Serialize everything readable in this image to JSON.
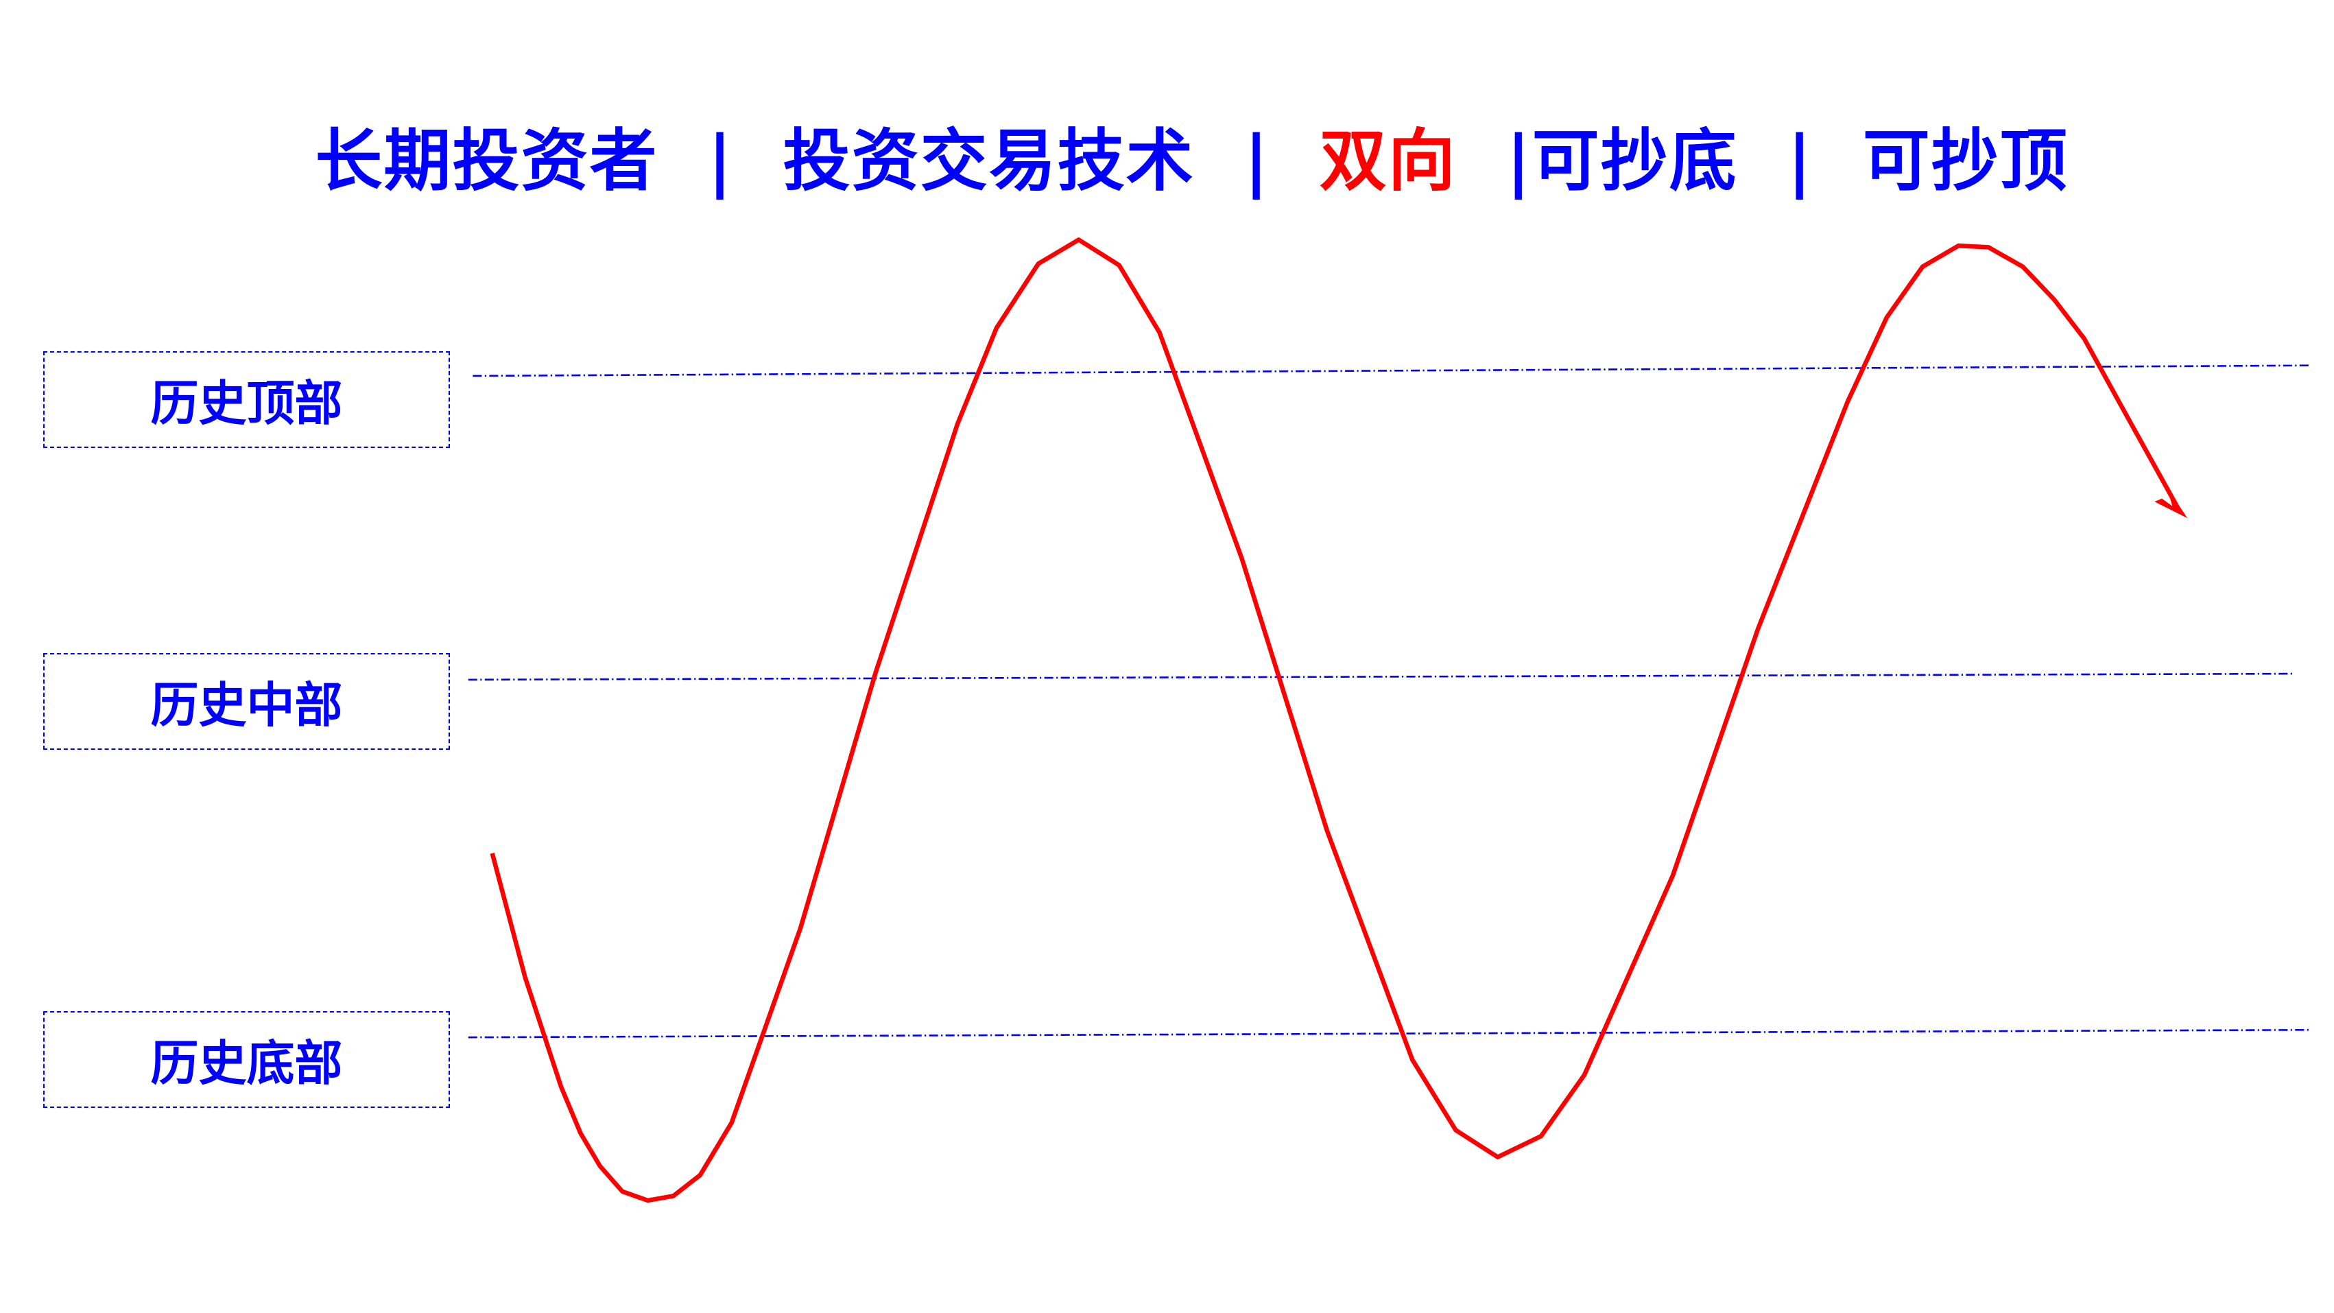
{
  "title": {
    "segments": [
      {
        "text": "长期投资者",
        "color": "#0000ff"
      },
      {
        "text": "  |  ",
        "color": "#0000ff"
      },
      {
        "text": "投资交易技术",
        "color": "#0000ff"
      },
      {
        "text": "  |  ",
        "color": "#0000ff"
      },
      {
        "text": "双向",
        "color": "#ff0000"
      },
      {
        "text": "  |",
        "color": "#0000ff"
      },
      {
        "text": "可抄底",
        "color": "#0000ff"
      },
      {
        "text": "  |  ",
        "color": "#0000ff"
      },
      {
        "text": "可抄顶",
        "color": "#0000ff"
      }
    ]
  },
  "levels": {
    "top": "历史顶部",
    "middle": "历史中部",
    "bottom": "历史底部"
  },
  "colors": {
    "text": "#0000ff",
    "accent": "#ff0000",
    "lines": "#0000ff",
    "curve": "#ff0000"
  }
}
